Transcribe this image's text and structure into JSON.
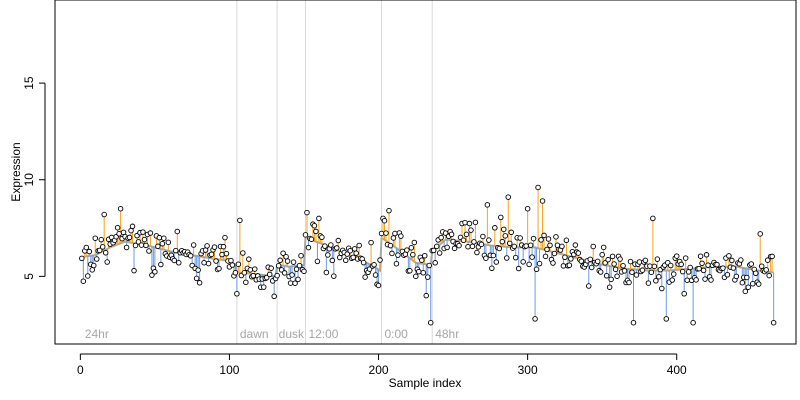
{
  "chart_data": {
    "type": "scatter",
    "xlabel": "Sample index",
    "ylabel": "Expression",
    "xlim": [
      -17,
      480
    ],
    "ylim": [
      1.5,
      19.3
    ],
    "x_ticks": [
      0,
      100,
      200,
      300,
      400
    ],
    "y_ticks": [
      5,
      10,
      15
    ],
    "grid": false,
    "legend": "none",
    "colors": {
      "above": "#f5a31a",
      "below": "#6f9be0",
      "trend": "#a9a9a9",
      "divider": "#dadada",
      "point_stroke": "#000000",
      "point_fill": "#ffffff",
      "phase_label": "#a6a6a6"
    },
    "phase_boundaries": [
      105,
      132,
      151,
      202,
      236
    ],
    "phase_labels": [
      {
        "x": 3,
        "text": "24hr"
      },
      {
        "x": 107,
        "text": "dawn"
      },
      {
        "x": 133,
        "text": "dusk"
      },
      {
        "x": 153,
        "text": "12:00"
      },
      {
        "x": 204,
        "text": "0:00"
      },
      {
        "x": 238,
        "text": "48hr"
      }
    ],
    "trend_anchors": [
      [
        1,
        6.0
      ],
      [
        10,
        6.1
      ],
      [
        20,
        6.5
      ],
      [
        30,
        6.8
      ],
      [
        45,
        6.6
      ],
      [
        60,
        6.3
      ],
      [
        75,
        6.1
      ],
      [
        90,
        5.9
      ],
      [
        100,
        5.8
      ],
      [
        104,
        5.6
      ],
      [
        105,
        5.2
      ],
      [
        120,
        5.1
      ],
      [
        131,
        5.0
      ],
      [
        132,
        5.6
      ],
      [
        140,
        5.5
      ],
      [
        150,
        5.6
      ],
      [
        151,
        7.0
      ],
      [
        165,
        6.6
      ],
      [
        180,
        6.1
      ],
      [
        195,
        5.6
      ],
      [
        201,
        5.3
      ],
      [
        202,
        7.0
      ],
      [
        215,
        6.3
      ],
      [
        225,
        5.7
      ],
      [
        235,
        5.6
      ],
      [
        236,
        6.3
      ],
      [
        245,
        6.9
      ],
      [
        260,
        6.8
      ],
      [
        275,
        6.6
      ],
      [
        290,
        6.5
      ],
      [
        305,
        6.5
      ],
      [
        320,
        6.2
      ],
      [
        335,
        5.9
      ],
      [
        350,
        5.6
      ],
      [
        365,
        5.4
      ],
      [
        380,
        5.3
      ],
      [
        395,
        5.3
      ],
      [
        410,
        5.4
      ],
      [
        425,
        5.5
      ],
      [
        440,
        5.5
      ],
      [
        455,
        5.3
      ],
      [
        465,
        5.2
      ]
    ],
    "n_points": 465,
    "outliers": [
      [
        16,
        8.2
      ],
      [
        27,
        8.5
      ],
      [
        105,
        4.1
      ],
      [
        107,
        7.9
      ],
      [
        152,
        8.3
      ],
      [
        156,
        7.7
      ],
      [
        203,
        8.0
      ],
      [
        207,
        8.4
      ],
      [
        232,
        4.0
      ],
      [
        235,
        2.6
      ],
      [
        243,
        7.3
      ],
      [
        273,
        8.7
      ],
      [
        287,
        9.1
      ],
      [
        300,
        8.5
      ],
      [
        307,
        9.6
      ],
      [
        310,
        8.9
      ],
      [
        305,
        2.8
      ],
      [
        341,
        4.5
      ],
      [
        371,
        2.6
      ],
      [
        384,
        8.0
      ],
      [
        393,
        2.8
      ],
      [
        405,
        4.1
      ],
      [
        411,
        2.6
      ],
      [
        456,
        7.2
      ],
      [
        465,
        2.6
      ]
    ]
  }
}
